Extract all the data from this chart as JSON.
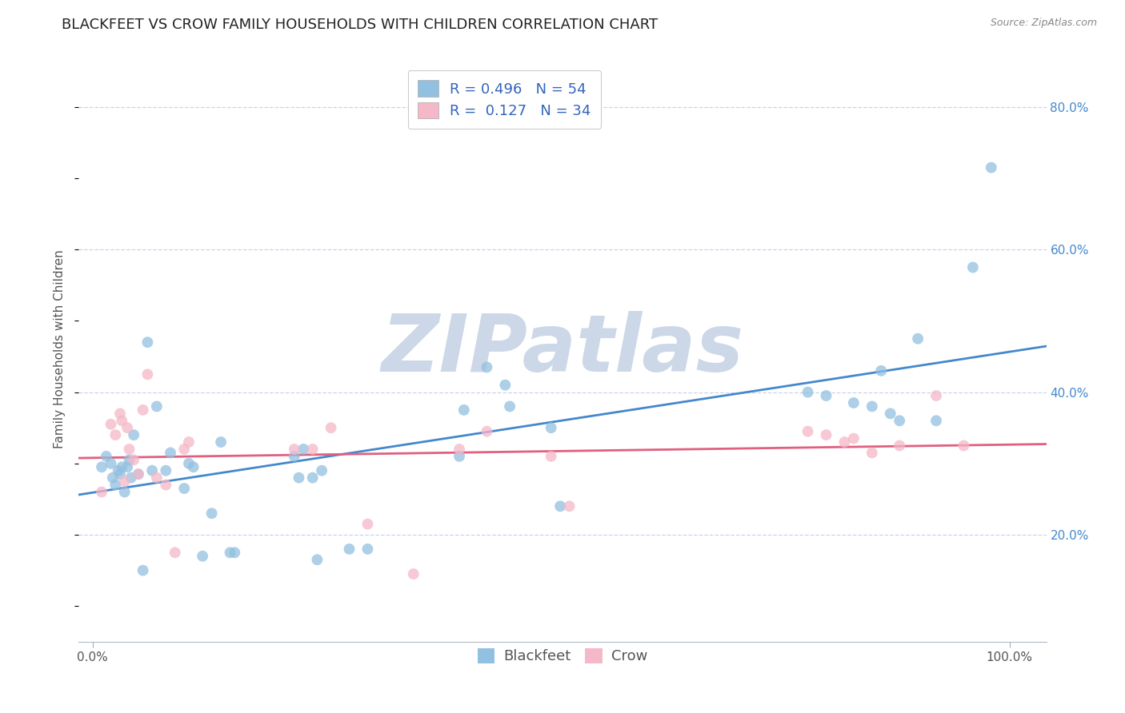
{
  "title": "BLACKFEET VS CROW FAMILY HOUSEHOLDS WITH CHILDREN CORRELATION CHART",
  "source": "Source: ZipAtlas.com",
  "ylabel": "Family Households with Children",
  "watermark": "ZIPatlas",
  "blackfeet_R": 0.496,
  "blackfeet_N": 54,
  "crow_R": 0.127,
  "crow_N": 34,
  "blackfeet_color": "#92c0e0",
  "crow_color": "#f4b8c8",
  "blackfeet_line_color": "#4488cc",
  "crow_line_color": "#e06080",
  "blackfeet_x": [
    0.01,
    0.015,
    0.02,
    0.022,
    0.025,
    0.028,
    0.03,
    0.032,
    0.035,
    0.038,
    0.04,
    0.042,
    0.045,
    0.05,
    0.055,
    0.06,
    0.065,
    0.07,
    0.08,
    0.085,
    0.1,
    0.105,
    0.11,
    0.12,
    0.13,
    0.14,
    0.15,
    0.155,
    0.22,
    0.225,
    0.23,
    0.24,
    0.245,
    0.25,
    0.28,
    0.3,
    0.4,
    0.405,
    0.43,
    0.45,
    0.455,
    0.5,
    0.51,
    0.78,
    0.8,
    0.83,
    0.85,
    0.86,
    0.87,
    0.88,
    0.9,
    0.92,
    0.96,
    0.98
  ],
  "blackfeet_y": [
    0.295,
    0.31,
    0.3,
    0.28,
    0.27,
    0.29,
    0.285,
    0.295,
    0.26,
    0.295,
    0.305,
    0.28,
    0.34,
    0.285,
    0.15,
    0.47,
    0.29,
    0.38,
    0.29,
    0.315,
    0.265,
    0.3,
    0.295,
    0.17,
    0.23,
    0.33,
    0.175,
    0.175,
    0.31,
    0.28,
    0.32,
    0.28,
    0.165,
    0.29,
    0.18,
    0.18,
    0.31,
    0.375,
    0.435,
    0.41,
    0.38,
    0.35,
    0.24,
    0.4,
    0.395,
    0.385,
    0.38,
    0.43,
    0.37,
    0.36,
    0.475,
    0.36,
    0.575,
    0.715
  ],
  "crow_x": [
    0.01,
    0.02,
    0.025,
    0.03,
    0.032,
    0.035,
    0.038,
    0.04,
    0.045,
    0.05,
    0.055,
    0.06,
    0.07,
    0.08,
    0.09,
    0.1,
    0.105,
    0.22,
    0.24,
    0.26,
    0.3,
    0.35,
    0.4,
    0.43,
    0.5,
    0.52,
    0.78,
    0.8,
    0.82,
    0.83,
    0.85,
    0.88,
    0.92,
    0.95
  ],
  "crow_y": [
    0.26,
    0.355,
    0.34,
    0.37,
    0.36,
    0.275,
    0.35,
    0.32,
    0.305,
    0.285,
    0.375,
    0.425,
    0.28,
    0.27,
    0.175,
    0.32,
    0.33,
    0.32,
    0.32,
    0.35,
    0.215,
    0.145,
    0.32,
    0.345,
    0.31,
    0.24,
    0.345,
    0.34,
    0.33,
    0.335,
    0.315,
    0.325,
    0.395,
    0.325
  ],
  "ylim": [
    0.05,
    0.87
  ],
  "xlim": [
    -0.015,
    1.04
  ],
  "ytick_positions": [
    0.2,
    0.4,
    0.6,
    0.8
  ],
  "ytick_labels": [
    "20.0%",
    "40.0%",
    "60.0%",
    "80.0%"
  ],
  "xtick_positions": [
    0.0,
    1.0
  ],
  "xtick_labels": [
    "0.0%",
    "100.0%"
  ],
  "background_color": "#ffffff",
  "grid_color": "#c8d4e8",
  "title_fontsize": 13,
  "ylabel_fontsize": 11,
  "tick_fontsize": 11,
  "legend_fontsize": 13,
  "watermark_color": "#ccd8e8",
  "watermark_fontsize": 72,
  "scatter_size": 100,
  "scatter_alpha": 0.75,
  "line_width": 2.0
}
